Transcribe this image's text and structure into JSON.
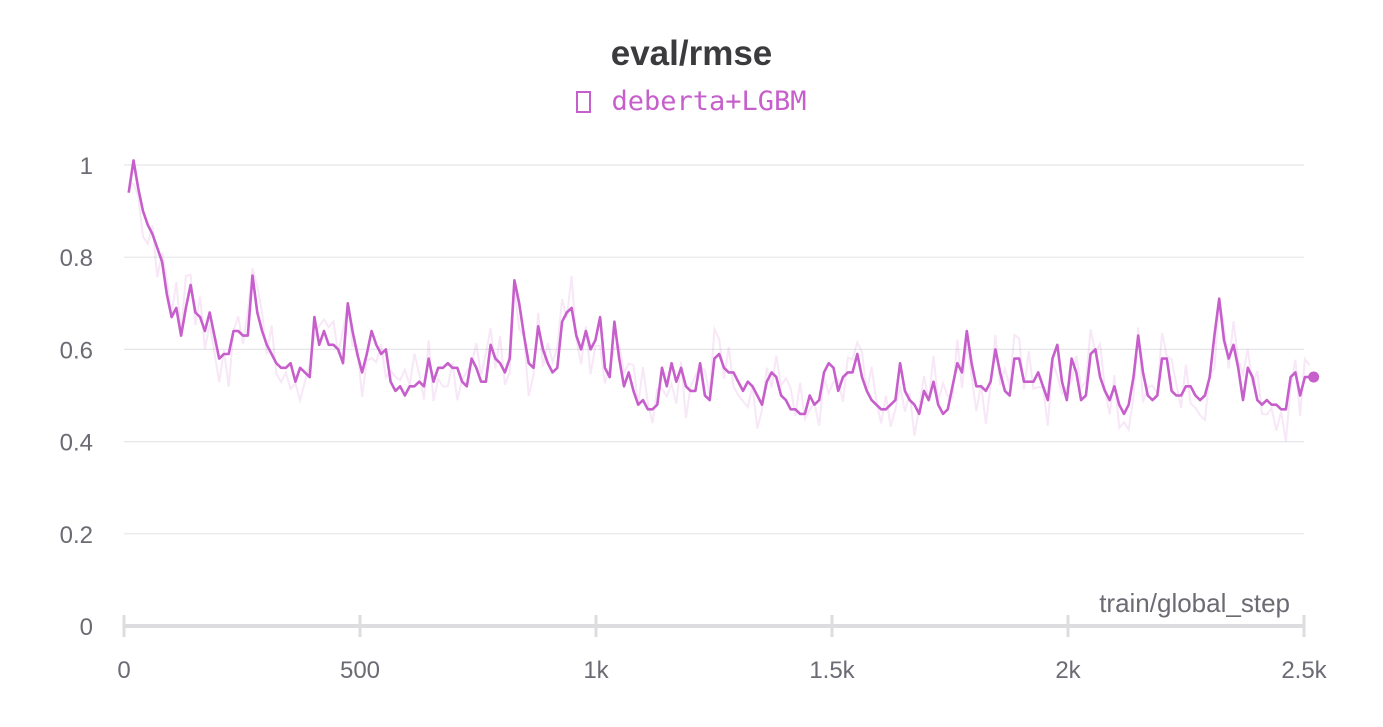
{
  "chart_data": {
    "type": "line",
    "title": "eval/rmse",
    "xlabel": "train/global_step",
    "ylabel": "",
    "xlim": [
      0,
      2500
    ],
    "ylim": [
      0,
      1.05
    ],
    "x_ticks": [
      0,
      500,
      1000,
      1500,
      2000,
      2500
    ],
    "x_tick_labels": [
      "0",
      "500",
      "1k",
      "1.5k",
      "2k",
      "2.5k"
    ],
    "y_ticks": [
      0,
      0.2,
      0.4,
      0.6,
      0.8,
      1
    ],
    "y_tick_labels": [
      "0",
      "0.2",
      "0.4",
      "0.6",
      "0.8",
      "1"
    ],
    "grid": true,
    "legend_position": "top-center",
    "series": [
      {
        "name": "deberta+LGBM",
        "color": "#c65fcb",
        "values": [
          0.94,
          1.01,
          0.95,
          0.9,
          0.87,
          0.85,
          0.82,
          0.79,
          0.72,
          0.67,
          0.69,
          0.63,
          0.69,
          0.74,
          0.68,
          0.67,
          0.64,
          0.68,
          0.63,
          0.58,
          0.59,
          0.59,
          0.64,
          0.64,
          0.63,
          0.63,
          0.76,
          0.68,
          0.64,
          0.61,
          0.59,
          0.57,
          0.56,
          0.56,
          0.57,
          0.53,
          0.56,
          0.55,
          0.54,
          0.67,
          0.61,
          0.64,
          0.61,
          0.61,
          0.6,
          0.57,
          0.7,
          0.64,
          0.59,
          0.55,
          0.59,
          0.64,
          0.61,
          0.59,
          0.6,
          0.53,
          0.51,
          0.52,
          0.5,
          0.52,
          0.52,
          0.53,
          0.52,
          0.58,
          0.53,
          0.56,
          0.56,
          0.57,
          0.56,
          0.56,
          0.53,
          0.52,
          0.58,
          0.56,
          0.53,
          0.53,
          0.61,
          0.58,
          0.57,
          0.55,
          0.58,
          0.75,
          0.7,
          0.63,
          0.57,
          0.56,
          0.65,
          0.6,
          0.57,
          0.55,
          0.56,
          0.66,
          0.68,
          0.69,
          0.63,
          0.6,
          0.64,
          0.6,
          0.62,
          0.67,
          0.56,
          0.54,
          0.66,
          0.58,
          0.52,
          0.55,
          0.51,
          0.48,
          0.49,
          0.47,
          0.47,
          0.48,
          0.56,
          0.52,
          0.57,
          0.53,
          0.56,
          0.52,
          0.51,
          0.51,
          0.57,
          0.5,
          0.49,
          0.58,
          0.59,
          0.56,
          0.55,
          0.55,
          0.53,
          0.51,
          0.53,
          0.52,
          0.5,
          0.48,
          0.53,
          0.55,
          0.54,
          0.5,
          0.49,
          0.47,
          0.47,
          0.46,
          0.46,
          0.5,
          0.48,
          0.49,
          0.55,
          0.57,
          0.56,
          0.51,
          0.54,
          0.55,
          0.55,
          0.59,
          0.54,
          0.51,
          0.49,
          0.48,
          0.47,
          0.47,
          0.48,
          0.49,
          0.57,
          0.51,
          0.49,
          0.48,
          0.46,
          0.51,
          0.49,
          0.53,
          0.48,
          0.46,
          0.47,
          0.52,
          0.57,
          0.55,
          0.64,
          0.57,
          0.52,
          0.52,
          0.51,
          0.53,
          0.6,
          0.55,
          0.51,
          0.5,
          0.58,
          0.58,
          0.53,
          0.53,
          0.53,
          0.55,
          0.52,
          0.49,
          0.58,
          0.61,
          0.53,
          0.49,
          0.58,
          0.55,
          0.49,
          0.5,
          0.59,
          0.6,
          0.54,
          0.51,
          0.49,
          0.52,
          0.48,
          0.46,
          0.48,
          0.54,
          0.63,
          0.55,
          0.5,
          0.49,
          0.5,
          0.58,
          0.58,
          0.51,
          0.5,
          0.5,
          0.52,
          0.52,
          0.5,
          0.49,
          0.5,
          0.54,
          0.63,
          0.71,
          0.62,
          0.58,
          0.61,
          0.56,
          0.49,
          0.56,
          0.54,
          0.49,
          0.48,
          0.49,
          0.48,
          0.48,
          0.47,
          0.47,
          0.54,
          0.55,
          0.5,
          0.54,
          0.54
        ]
      }
    ]
  }
}
